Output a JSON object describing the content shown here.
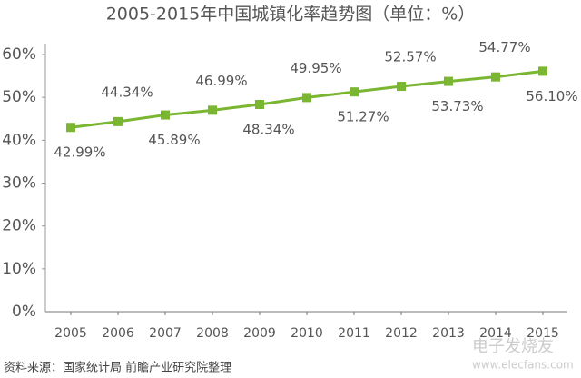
{
  "chart_data": {
    "type": "line",
    "title": "2005-2015年中国城镇化率趋势图（单位：%）",
    "categories": [
      "2005",
      "2006",
      "2007",
      "2008",
      "2009",
      "2010",
      "2011",
      "2012",
      "2013",
      "2014",
      "2015"
    ],
    "series": [
      {
        "name": "城镇化率",
        "color": "#7ab632",
        "values": [
          42.99,
          44.34,
          45.89,
          46.99,
          48.34,
          49.95,
          51.27,
          52.57,
          53.73,
          54.77,
          56.1
        ],
        "value_labels": [
          "42.99%",
          "44.34%",
          "45.89%",
          "46.99%",
          "48.34%",
          "49.95%",
          "51.27%",
          "52.57%",
          "53.73%",
          "54.77%",
          "56.10%"
        ]
      }
    ],
    "ylim": [
      0,
      60
    ],
    "yticks": [
      {
        "value": 0,
        "label": "0%"
      },
      {
        "value": 10,
        "label": "10%"
      },
      {
        "value": 20,
        "label": "20%"
      },
      {
        "value": 30,
        "label": "30%"
      },
      {
        "value": 40,
        "label": "40%"
      },
      {
        "value": 50,
        "label": "50%"
      },
      {
        "value": 60,
        "label": "60%"
      }
    ],
    "source": "资料来源：国家统计局 前瞻产业研究院整理",
    "watermark": [
      "电子发烧友",
      "www.elecfans.com"
    ]
  }
}
